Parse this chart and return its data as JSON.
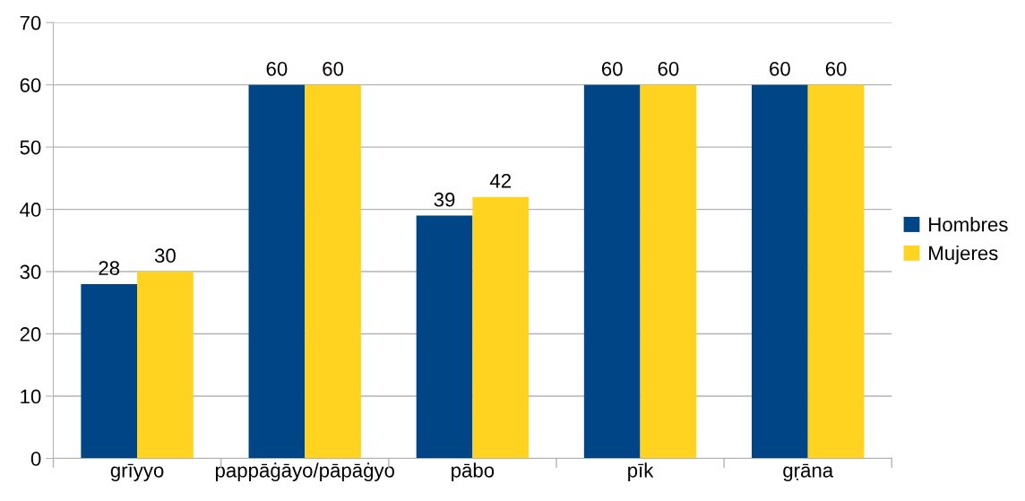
{
  "chart_data": {
    "type": "bar",
    "categories": [
      "grīyyo",
      "pappāġāyo/pāpāġyo",
      "pābo",
      "pīk",
      "gṛāna"
    ],
    "series": [
      {
        "name": "Hombres",
        "color": "#004586",
        "values": [
          28,
          60,
          39,
          60,
          60
        ]
      },
      {
        "name": "Mujeres",
        "color": "#ffd320",
        "values": [
          30,
          60,
          42,
          60,
          60
        ]
      }
    ],
    "ylim": [
      0,
      70
    ],
    "yticks": [
      0,
      10,
      20,
      30,
      40,
      50,
      60,
      70
    ],
    "grid": "y",
    "legend": "right",
    "data_labels": true
  }
}
